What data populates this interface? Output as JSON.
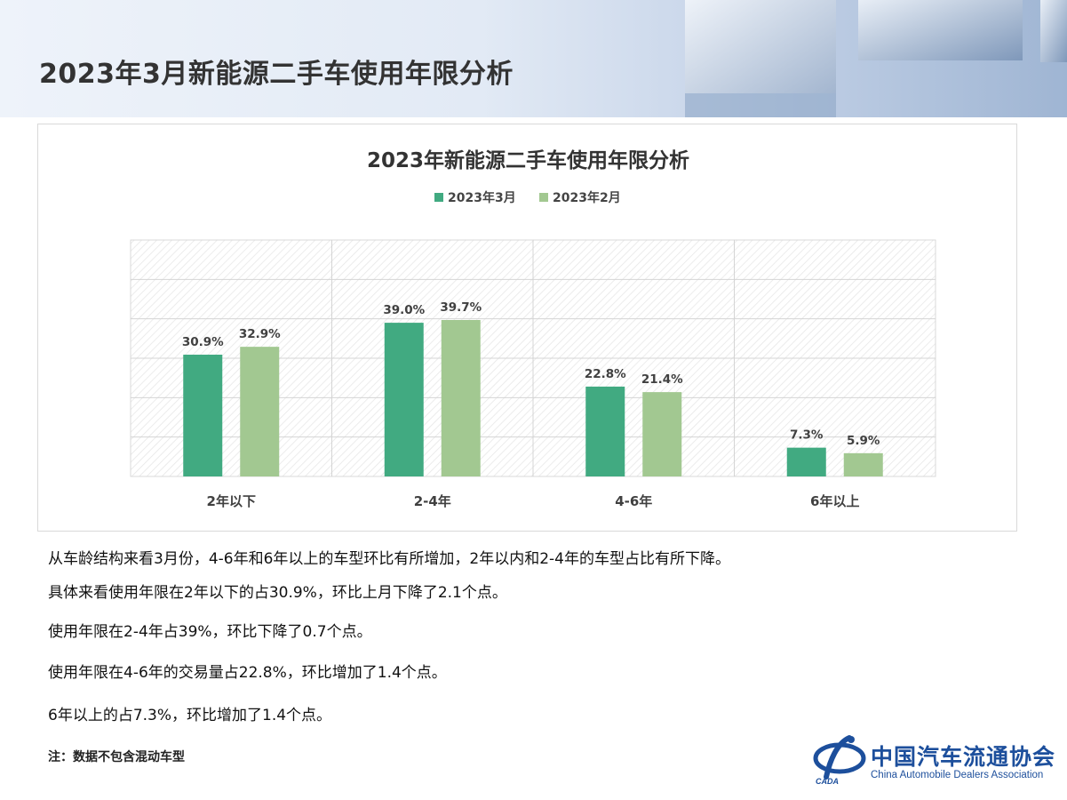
{
  "header": {
    "title": "2023年3月新能源二手车使用年限分析"
  },
  "colors": {
    "series_mar": "#41aa81",
    "series_feb": "#a2c891",
    "logo_blue": "#1d4f9c"
  },
  "chart_data": {
    "type": "bar",
    "title": "2023年新能源二手车使用年限分析",
    "categories": [
      "2年以下",
      "2-4年",
      "4-6年",
      "6年以上"
    ],
    "series": [
      {
        "name": "2023年3月",
        "values": [
          30.9,
          39.0,
          22.8,
          7.3
        ],
        "labels": [
          "30.9%",
          "39.0%",
          "22.8%",
          "7.3%"
        ]
      },
      {
        "name": "2023年2月",
        "values": [
          32.9,
          39.7,
          21.4,
          5.9
        ],
        "labels": [
          "32.9%",
          "39.7%",
          "21.4%",
          "5.9%"
        ]
      }
    ],
    "ylim": [
      0,
      60
    ],
    "grid": true,
    "legend": "top-center"
  },
  "text": {
    "line1": "从车龄结构来看3月份，4-6年和6年以上的车型环比有所增加，2年以内和2-4年的车型占比有所下降。",
    "line2": "具体来看使用年限在2年以下的占30.9%，环比上月下降了2.1个点。",
    "line3": "使用年限在2-4年占39%，环比下降了0.7个点。",
    "line4": "使用年限在4-6年的交易量占22.8%，环比增加了1.4个点。",
    "line5": "6年以上的占7.3%，环比增加了1.4个点。"
  },
  "note": "注：数据不包含混动车型",
  "logo": {
    "name_cn": "中国汽车流通协会",
    "name_en": "China Automobile Dealers Association",
    "abbr": "CADA"
  }
}
